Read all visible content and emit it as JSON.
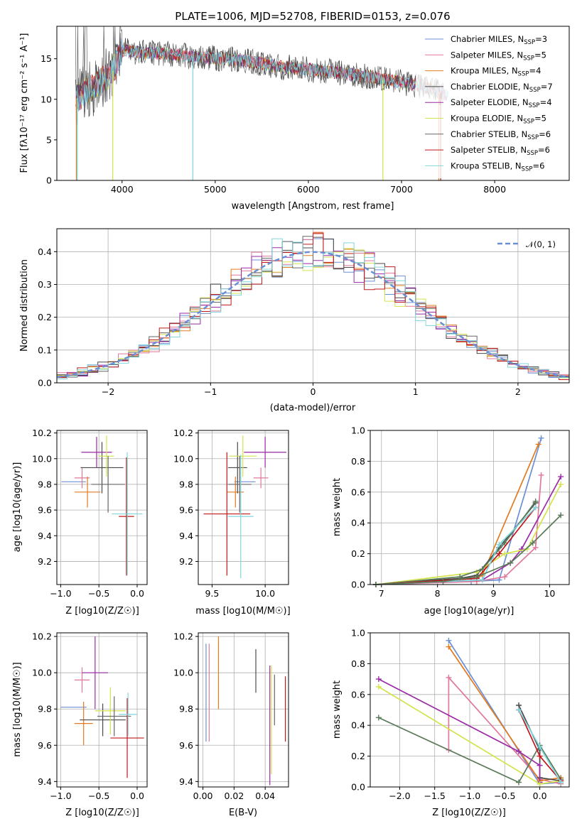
{
  "colors": [
    "#6b8fd4",
    "#e0789c",
    "#e07b22",
    "#4a4a4a",
    "#9b2aa6",
    "#d4e34c",
    "#666666",
    "#c0181a",
    "#7fd6dc"
  ],
  "chart_data": [
    {
      "id": "spectrum",
      "type": "line",
      "title": "PLATE=1006, MJD=52708, FIBERID=0153, z=0.076",
      "xlabel": "wavelength [Angstrom, rest frame]",
      "ylabel": "Flux [fλ10⁻¹⁷ erg cm⁻² s⁻¹ A⁻¹]",
      "xlim": [
        3300,
        8800
      ],
      "ylim": [
        0,
        19
      ],
      "xticks": [
        4000,
        5000,
        6000,
        7000,
        8000
      ],
      "yticks": [
        0,
        5,
        10,
        15
      ],
      "grid": false,
      "legend_position": "top-right",
      "continuum": {
        "x": [
          3500,
          3700,
          3900,
          4000,
          4200,
          4500,
          4800,
          5100,
          5400,
          5700,
          6000,
          6300,
          6600,
          6900,
          7200,
          7500
        ],
        "y": [
          10.0,
          11.5,
          13.5,
          16.0,
          15.8,
          15.6,
          15.2,
          15.0,
          14.6,
          14.0,
          13.7,
          13.3,
          12.9,
          12.3,
          11.7,
          10.5
        ]
      },
      "series": [
        {
          "name": "Chabrier MILES, N_SSP=3",
          "label": "Chabrier MILES, N",
          "sub": "SSP",
          "suffix": "=3"
        },
        {
          "name": "Salpeter MILES, N_SSP=5",
          "label": "Salpeter MILES, N",
          "sub": "SSP",
          "suffix": "=5"
        },
        {
          "name": "Kroupa MILES, N_SSP=4",
          "label": "Kroupa MILES, N",
          "sub": "SSP",
          "suffix": "=4"
        },
        {
          "name": "Chabrier ELODIE, N_SSP=7",
          "label": "Chabrier ELODIE, N",
          "sub": "SSP",
          "suffix": "=7"
        },
        {
          "name": "Salpeter ELODIE, N_SSP=4",
          "label": "Salpeter ELODIE, N",
          "sub": "SSP",
          "suffix": "=4"
        },
        {
          "name": "Kroupa ELODIE, N_SSP=5",
          "label": "Kroupa ELODIE, N",
          "sub": "SSP",
          "suffix": "=5"
        },
        {
          "name": "Chabrier STELIB, N_SSP=6",
          "label": "Chabrier STELIB, N",
          "sub": "SSP",
          "suffix": "=6"
        },
        {
          "name": "Salpeter STELIB, N_SSP=6",
          "label": "Salpeter STELIB, N",
          "sub": "SSP",
          "suffix": "=6"
        },
        {
          "name": "Kroupa STELIB, N_SSP=6",
          "label": "Kroupa STELIB, N",
          "sub": "SSP",
          "suffix": "=6"
        }
      ]
    },
    {
      "id": "residuals",
      "type": "step",
      "xlabel": "(data-model)/error",
      "ylabel": "Normed distribution",
      "xlim": [
        -2.5,
        2.5
      ],
      "ylim": [
        0,
        0.47
      ],
      "xticks": [
        -2,
        -1,
        0,
        1,
        2
      ],
      "yticks": [
        0.0,
        0.1,
        0.2,
        0.3,
        0.4
      ],
      "grid": true,
      "bin_width": 0.1,
      "reference": {
        "name": "𝒩(0, 1)",
        "mean": 0,
        "sigma": 1,
        "style": "dashed"
      },
      "legend_position": "top-right"
    },
    {
      "id": "age_vs_Z",
      "type": "errorbar",
      "xlabel": "Z [log10(Z/Z☉)]",
      "ylabel": "age  [log10(age/yr)]",
      "xlim": [
        -1.05,
        0.13
      ],
      "ylim": [
        9.02,
        10.22
      ],
      "xticks": [
        -1.0,
        -0.5,
        0.0
      ],
      "yticks": [
        9.2,
        9.4,
        9.6,
        9.8,
        10.0,
        10.2
      ],
      "grid": true,
      "points": [
        {
          "x": -0.83,
          "xerr": 0.16,
          "y": 9.82,
          "yerr": 0.0
        },
        {
          "x": -0.72,
          "xerr": 0.1,
          "y": 9.85,
          "yerr": 0.08
        },
        {
          "x": -0.65,
          "xerr": 0.17,
          "y": 9.74,
          "yerr": 0.12
        },
        {
          "x": -0.46,
          "xerr": 0.28,
          "y": 9.93,
          "yerr": 0.2
        },
        {
          "x": -0.53,
          "xerr": 0.2,
          "y": 10.05,
          "yerr": 0.12
        },
        {
          "x": -0.4,
          "xerr": 0.1,
          "y": 10.02,
          "yerr": 0.16
        },
        {
          "x": -0.38,
          "xerr": 0.22,
          "y": 9.8,
          "yerr": 0.22
        },
        {
          "x": -0.14,
          "xerr": 0.1,
          "y": 9.55,
          "yerr": 0.46
        },
        {
          "x": -0.13,
          "xerr": 0.2,
          "y": 9.57,
          "yerr": 0.48
        }
      ]
    },
    {
      "id": "age_vs_mass",
      "type": "errorbar",
      "xlabel": "mass [log10(M/M☉)]",
      "ylabel": "",
      "xlim": [
        9.37,
        10.22
      ],
      "ylim": [
        9.02,
        10.22
      ],
      "xticks": [
        9.5,
        10.0
      ],
      "yticks": [
        9.2,
        9.4,
        9.6,
        9.8,
        10.0,
        10.2
      ],
      "grid": true,
      "points": [
        {
          "x": 9.81,
          "xerr": 0.1,
          "y": 9.82,
          "yerr": 0.0
        },
        {
          "x": 9.96,
          "xerr": 0.07,
          "y": 9.85,
          "yerr": 0.08
        },
        {
          "x": 9.72,
          "xerr": 0.08,
          "y": 9.74,
          "yerr": 0.12
        },
        {
          "x": 9.74,
          "xerr": 0.09,
          "y": 9.93,
          "yerr": 0.2
        },
        {
          "x": 10.0,
          "xerr": 0.2,
          "y": 10.05,
          "yerr": 0.12
        },
        {
          "x": 9.79,
          "xerr": 0.13,
          "y": 10.02,
          "yerr": 0.16
        },
        {
          "x": 9.76,
          "xerr": 0.11,
          "y": 9.8,
          "yerr": 0.22
        },
        {
          "x": 9.64,
          "xerr": 0.22,
          "y": 9.57,
          "yerr": 0.48
        },
        {
          "x": 9.77,
          "xerr": 0.12,
          "y": 9.55,
          "yerr": 0.48
        }
      ]
    },
    {
      "id": "massweight_vs_age",
      "type": "line",
      "xlabel": "age  [log10(age/yr)]",
      "ylabel": "mass weight",
      "xlim": [
        6.8,
        10.35
      ],
      "ylim": [
        0,
        1
      ],
      "xticks": [
        7,
        8,
        9,
        10
      ],
      "yticks": [
        0.0,
        0.2,
        0.4,
        0.6,
        0.8,
        1.0
      ],
      "grid": true,
      "series": [
        {
          "name": "Chabrier MILES",
          "x": [
            8.6,
            9.1,
            9.85
          ],
          "y": [
            0.02,
            0.03,
            0.95
          ]
        },
        {
          "name": "Salpeter MILES",
          "x": [
            6.9,
            8.7,
            9.2,
            9.75,
            9.85
          ],
          "y": [
            0.0,
            0.02,
            0.05,
            0.24,
            0.71
          ]
        },
        {
          "name": "Kroupa MILES",
          "x": [
            6.9,
            8.7,
            8.8,
            9.8
          ],
          "y": [
            0.0,
            0.04,
            0.06,
            0.91
          ]
        },
        {
          "name": "Chabrier ELODIE",
          "x": [
            6.9,
            8.4,
            8.7,
            9.1,
            9.75
          ],
          "y": [
            0.0,
            0.04,
            0.06,
            0.24,
            0.53
          ]
        },
        {
          "name": "Salpeter ELODIE",
          "x": [
            6.9,
            8.8,
            9.3,
            9.5,
            10.2
          ],
          "y": [
            0.0,
            0.03,
            0.14,
            0.23,
            0.7
          ]
        },
        {
          "name": "Kroupa ELODIE",
          "x": [
            6.9,
            8.7,
            9.2,
            9.6,
            10.2
          ],
          "y": [
            0.0,
            0.08,
            0.2,
            0.23,
            0.65
          ]
        },
        {
          "name": "Chabrier STELIB",
          "x": [
            6.9,
            8.4,
            8.8,
            9.2,
            9.75
          ],
          "y": [
            0.0,
            0.05,
            0.1,
            0.27,
            0.54
          ]
        },
        {
          "name": "Salpeter STELIB",
          "x": [
            6.9,
            8.7,
            9.1,
            9.75
          ],
          "y": [
            0.0,
            0.04,
            0.2,
            0.5
          ]
        },
        {
          "name": "Kroupa STELIB",
          "x": [
            6.9,
            8.8,
            9.1,
            9.75
          ],
          "y": [
            0.0,
            0.03,
            0.26,
            0.5
          ]
        },
        {
          "name": "Other",
          "x": [
            6.9,
            8.1,
            8.7,
            9.3,
            9.7,
            10.2
          ],
          "y": [
            0.0,
            0.02,
            0.05,
            0.14,
            0.27,
            0.45
          ]
        }
      ]
    },
    {
      "id": "mass_vs_Z",
      "type": "errorbar",
      "xlabel": "Z [log10(Z/Z☉)]",
      "ylabel": "mass [log10(M/M☉)]",
      "xlim": [
        -1.05,
        0.13
      ],
      "ylim": [
        9.37,
        10.22
      ],
      "xticks": [
        -1.0,
        -0.5,
        0.0
      ],
      "yticks": [
        9.4,
        9.6,
        9.8,
        10.0,
        10.2
      ],
      "grid": true,
      "points": [
        {
          "x": -0.83,
          "xerr": 0.17,
          "y": 9.81,
          "yerr": 0.0
        },
        {
          "x": -0.72,
          "xerr": 0.1,
          "y": 9.96,
          "yerr": 0.07
        },
        {
          "x": -0.7,
          "xerr": 0.12,
          "y": 9.72,
          "yerr": 0.12
        },
        {
          "x": -0.45,
          "xerr": 0.3,
          "y": 9.74,
          "yerr": 0.09
        },
        {
          "x": -0.55,
          "xerr": 0.17,
          "y": 10.0,
          "yerr": 0.2
        },
        {
          "x": -0.35,
          "xerr": 0.2,
          "y": 9.79,
          "yerr": 0.13
        },
        {
          "x": -0.3,
          "xerr": 0.22,
          "y": 9.76,
          "yerr": 0.11
        },
        {
          "x": -0.13,
          "xerr": 0.22,
          "y": 9.64,
          "yerr": 0.22
        },
        {
          "x": -0.12,
          "xerr": 0.12,
          "y": 9.77,
          "yerr": 0.12
        }
      ]
    },
    {
      "id": "mass_vs_ebv",
      "type": "errorbar",
      "xlabel": "E(B-V)",
      "ylabel": "",
      "xlim": [
        -0.003,
        0.055
      ],
      "ylim": [
        9.37,
        10.22
      ],
      "xticks": [
        0.0,
        0.02,
        0.04
      ],
      "yticks": [
        9.4,
        9.6,
        9.8,
        10.0,
        10.2
      ],
      "grid": true,
      "points": [
        {
          "x": 0.002,
          "xerr": 0,
          "y": 9.89,
          "yerr": 0.27
        },
        {
          "x": 0.004,
          "xerr": 0,
          "y": 9.89,
          "yerr": 0.27
        },
        {
          "x": 0.01,
          "xerr": 0,
          "y": 10.0,
          "yerr": 0.2
        },
        {
          "x": 0.034,
          "xerr": 0,
          "y": 10.01,
          "yerr": 0.12
        },
        {
          "x": 0.043,
          "xerr": 0,
          "y": 9.71,
          "yerr": 0.33
        },
        {
          "x": 0.044,
          "xerr": 0,
          "y": 9.74,
          "yerr": 0.3
        },
        {
          "x": 0.046,
          "xerr": 0,
          "y": 9.85,
          "yerr": 0.14
        },
        {
          "x": 0.053,
          "xerr": 0,
          "y": 9.8,
          "yerr": 0.18
        }
      ]
    },
    {
      "id": "massweight_vs_Z",
      "type": "line",
      "xlabel": "Z [log10(Z/Z☉)]",
      "ylabel": "mass weight",
      "xlim": [
        -2.42,
        0.42
      ],
      "ylim": [
        0,
        1
      ],
      "xticks": [
        -2.0,
        -1.5,
        -1.0,
        -0.5,
        0.0
      ],
      "yticks": [
        0.0,
        0.2,
        0.4,
        0.6,
        0.8,
        1.0
      ],
      "grid": true,
      "series": [
        {
          "name": "Chabrier MILES",
          "x": [
            -1.3,
            0.0,
            0.3
          ],
          "y": [
            0.95,
            0.02,
            0.03
          ]
        },
        {
          "name": "Salpeter MILES",
          "x": [
            -1.3,
            -1.3,
            0.0,
            0.3
          ],
          "y": [
            0.24,
            0.71,
            0.05,
            0.02
          ]
        },
        {
          "name": "Kroupa MILES",
          "x": [
            -1.3,
            0.0,
            0.3
          ],
          "y": [
            0.91,
            0.04,
            0.06
          ]
        },
        {
          "name": "Chabrier ELODIE",
          "x": [
            -0.3,
            0.0,
            0.0,
            0.3
          ],
          "y": [
            0.53,
            0.24,
            0.06,
            0.04
          ]
        },
        {
          "name": "Salpeter ELODIE",
          "x": [
            -2.3,
            -0.3,
            0.0,
            0.0
          ],
          "y": [
            0.7,
            0.23,
            0.14,
            0.03
          ]
        },
        {
          "name": "Kroupa ELODIE",
          "x": [
            -2.3,
            0.0,
            0.3
          ],
          "y": [
            0.65,
            0.02,
            0.04
          ]
        },
        {
          "name": "Chabrier STELIB",
          "x": [
            -2.3,
            -0.3,
            0.0,
            0.3
          ],
          "y": [
            0.45,
            0.03,
            0.27,
            0.05
          ]
        },
        {
          "name": "Salpeter STELIB",
          "x": [
            -0.3,
            0.0,
            0.3
          ],
          "y": [
            0.5,
            0.2,
            0.04
          ]
        },
        {
          "name": "Kroupa STELIB",
          "x": [
            -0.3,
            0.0,
            0.3
          ],
          "y": [
            0.5,
            0.26,
            0.03
          ]
        }
      ]
    }
  ]
}
